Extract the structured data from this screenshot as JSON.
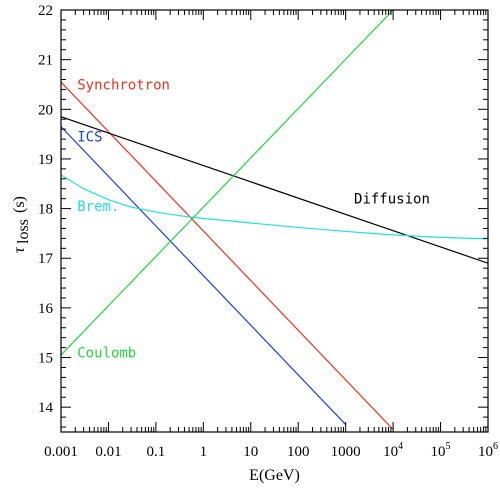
{
  "chart_data": {
    "type": "line",
    "xlabel": "E(GeV)",
    "ylabel_main": "τ",
    "ylabel_sub": "loss",
    "ylabel_unit": "(s)",
    "xscale": "log",
    "xlim": [
      0.001,
      1000000
    ],
    "ylim": [
      13.5,
      22
    ],
    "x_ticks": [
      {
        "value": 0.001,
        "label": "0.001"
      },
      {
        "value": 0.01,
        "label": "0.01"
      },
      {
        "value": 0.1,
        "label": "0.1"
      },
      {
        "value": 1,
        "label": "1"
      },
      {
        "value": 10,
        "label": "10"
      },
      {
        "value": 100,
        "label": "100"
      },
      {
        "value": 1000,
        "label": "1000"
      },
      {
        "value": 10000,
        "label": "10",
        "sup": "4"
      },
      {
        "value": 100000,
        "label": "10",
        "sup": "5"
      },
      {
        "value": 1000000,
        "label": "10",
        "sup": "6"
      }
    ],
    "y_ticks": [
      {
        "value": 14,
        "label": "14"
      },
      {
        "value": 15,
        "label": "15"
      },
      {
        "value": 16,
        "label": "16"
      },
      {
        "value": 17,
        "label": "17"
      },
      {
        "value": 18,
        "label": "18"
      },
      {
        "value": 19,
        "label": "19"
      },
      {
        "value": 20,
        "label": "20"
      },
      {
        "value": 21,
        "label": "21"
      },
      {
        "value": 22,
        "label": "22"
      }
    ],
    "series": [
      {
        "name": "Synchrotron",
        "color": "#e8321e",
        "x": [
          0.001,
          10000
        ],
        "y": [
          20.55,
          13.55
        ],
        "label_pos": {
          "x": 0.0022,
          "y": 20.4
        }
      },
      {
        "name": "ICS",
        "color": "#1c3fd6",
        "x": [
          0.001,
          1000
        ],
        "y": [
          19.65,
          13.65
        ],
        "label_pos": {
          "x": 0.0022,
          "y": 19.35
        }
      },
      {
        "name": "Diffusion",
        "color": "#000000",
        "x": [
          0.001,
          1000000
        ],
        "y": [
          19.85,
          16.9
        ],
        "label_pos": {
          "x": 1500,
          "y": 18.1
        }
      },
      {
        "name": "Brem.",
        "color": "#1fe0e0",
        "x": [
          0.001,
          0.003,
          0.01,
          0.03,
          0.1,
          0.3,
          1,
          3,
          10,
          100,
          1000,
          10000,
          100000,
          1000000
        ],
        "y": [
          18.68,
          18.4,
          18.18,
          18.03,
          17.93,
          17.86,
          17.8,
          17.76,
          17.71,
          17.62,
          17.54,
          17.47,
          17.42,
          17.39
        ],
        "label_pos": {
          "x": 0.0022,
          "y": 17.95
        }
      },
      {
        "name": "Coulomb",
        "color": "#22d63a",
        "x": [
          0.001,
          10000
        ],
        "y": [
          15.05,
          22
        ],
        "label_pos": {
          "x": 0.0022,
          "y": 15.0
        }
      }
    ]
  }
}
